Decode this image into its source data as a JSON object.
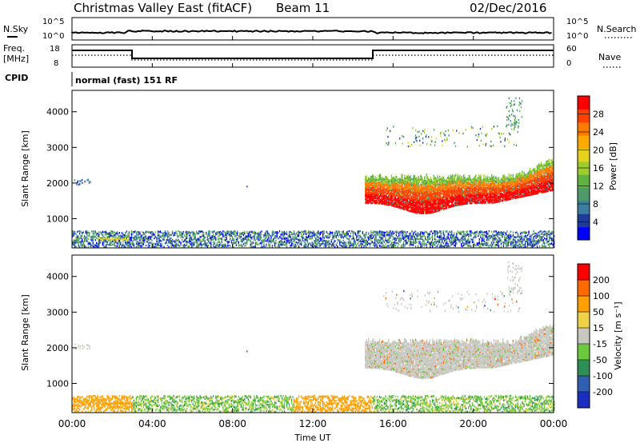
{
  "header": {
    "station": "Christmas Valley East (fitACF)",
    "beam": "Beam 11",
    "date": "02/Dec/2016"
  },
  "top_panel": {
    "left_label": "N.Sky",
    "left_ticks": [
      "10^5",
      "10^0"
    ],
    "right_label": "N.Search",
    "right_ticks": [
      "10^5",
      "10^0"
    ]
  },
  "freq_panel": {
    "left_label_line1": "Freq.",
    "left_label_line2": "[MHz]",
    "left_ticks": [
      "18",
      "8"
    ],
    "right_label": "Nave",
    "right_ticks": [
      "60",
      "0"
    ]
  },
  "cpid": {
    "label": "CPID",
    "mode_text": "normal (fast) 151 RF"
  },
  "chart_data": [
    {
      "type": "heatmap",
      "name": "power",
      "ylabel": "Slant Range [km]",
      "yticks": [
        "4000",
        "3000",
        "2000",
        "1000"
      ],
      "ylim": [
        180,
        4600
      ],
      "xlim": [
        0,
        24
      ],
      "colorbar": {
        "label": "Power [dB]",
        "ticks": [
          "28",
          "24",
          "20",
          "16",
          "12",
          "8",
          "4"
        ],
        "colors": [
          "#0000ff",
          "#1e3d99",
          "#3c7ea0",
          "#4e9a6a",
          "#5fb340",
          "#9ccc30",
          "#e6d21e",
          "#ffaa00",
          "#ff7a00",
          "#ff4000",
          "#ff0000"
        ]
      }
    },
    {
      "type": "heatmap",
      "name": "velocity",
      "ylabel": "Slant Range [km]",
      "yticks": [
        "4000",
        "3000",
        "2000",
        "1000"
      ],
      "ylim": [
        180,
        4600
      ],
      "xlim": [
        0,
        24
      ],
      "colorbar": {
        "label": "Velocity [m s⁻¹]",
        "ticks": [
          "200",
          "100",
          "50",
          "15",
          "-15",
          "-50",
          "-100",
          "-200"
        ],
        "colors": [
          "#1a2fbf",
          "#2f5fb0",
          "#2e8f56",
          "#6cc83c",
          "#c8c8c0",
          "#f0d24a",
          "#ffa000",
          "#ff6a00",
          "#ff0000"
        ]
      }
    }
  ],
  "x_axis": {
    "ticks": [
      "00:00",
      "04:00",
      "08:00",
      "12:00",
      "16:00",
      "20:00",
      "00:00"
    ],
    "label": "Time UT"
  }
}
